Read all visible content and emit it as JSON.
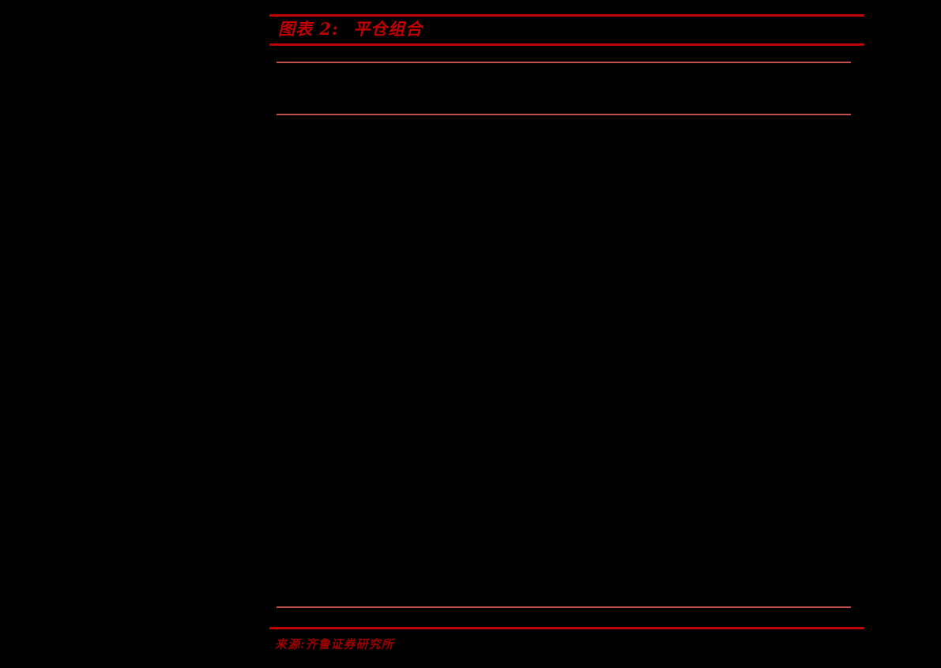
{
  "page": {
    "background_color": "#000000"
  },
  "figure": {
    "label": "图表 2:",
    "title": "平仓组合",
    "source": "来源:齐鲁证券研究所"
  },
  "colors": {
    "rule_accent_red": "#C00000",
    "rule_muted_red": "#C0504D",
    "title_red": "#C00000",
    "source_red": "#990000"
  }
}
